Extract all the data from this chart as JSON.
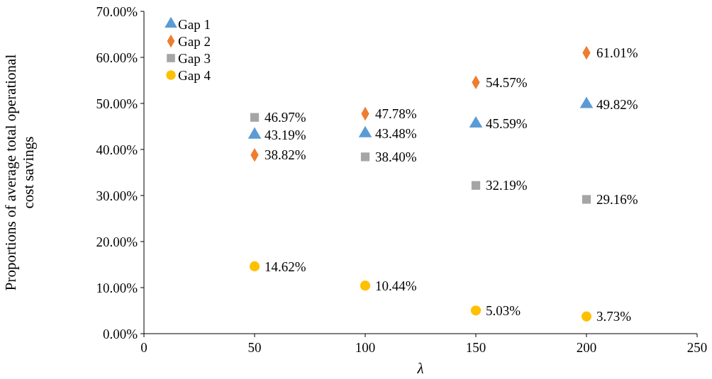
{
  "chart_data": {
    "type": "scatter",
    "xlabel": "λ",
    "ylabel": "Proportions of average total operational cost savings",
    "x": [
      50,
      100,
      150,
      200
    ],
    "xlim": [
      0,
      250
    ],
    "xticks": [
      0,
      50,
      100,
      150,
      200,
      250
    ],
    "ylim": [
      0,
      70
    ],
    "yticks": [
      {
        "value": 0,
        "label": "0.00%"
      },
      {
        "value": 10,
        "label": "10.00%"
      },
      {
        "value": 20,
        "label": "20.00%"
      },
      {
        "value": 30,
        "label": "30.00%"
      },
      {
        "value": 40,
        "label": "40.00%"
      },
      {
        "value": 50,
        "label": "50.00%"
      },
      {
        "value": 60,
        "label": "60.00%"
      },
      {
        "value": 70,
        "label": "70.00%"
      }
    ],
    "grid": false,
    "legend": "top left",
    "series": [
      {
        "name": "Gap 1",
        "color": "#5b9bd5",
        "marker": "triangle",
        "values": [
          43.19,
          43.48,
          45.59,
          49.82
        ],
        "value_labels": [
          "43.19%",
          "43.48%",
          "45.59%",
          "49.82%"
        ]
      },
      {
        "name": "Gap 2",
        "color": "#ed7d31",
        "marker": "diamond",
        "values": [
          38.82,
          47.78,
          54.57,
          61.01
        ],
        "value_labels": [
          "38.82%",
          "47.78%",
          "54.57%",
          "61.01%"
        ]
      },
      {
        "name": "Gap 3",
        "color": "#a5a5a5",
        "marker": "square",
        "values": [
          46.97,
          38.4,
          32.19,
          29.16
        ],
        "value_labels": [
          "46.97%",
          "38.40%",
          "32.19%",
          "29.16%"
        ]
      },
      {
        "name": "Gap 4",
        "color": "#ffc000",
        "marker": "circle",
        "values": [
          14.62,
          10.44,
          5.03,
          3.73
        ],
        "value_labels": [
          "14.62%",
          "10.44%",
          "5.03%",
          "3.73%"
        ]
      }
    ]
  }
}
